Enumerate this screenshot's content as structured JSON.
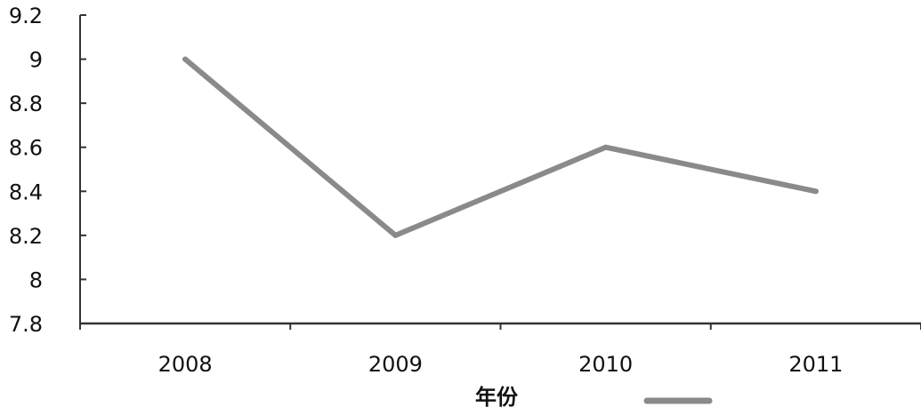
{
  "chart_data": {
    "type": "line",
    "title": "",
    "xlabel": "年份",
    "ylabel": "",
    "categories": [
      "2008",
      "2009",
      "2010",
      "2011"
    ],
    "series": [
      {
        "name": "",
        "values": [
          9.0,
          8.2,
          8.6,
          8.4
        ],
        "color": "#8a8a8a"
      }
    ],
    "ylim": [
      7.8,
      9.2
    ],
    "y_ticks": [
      7.8,
      8.0,
      8.2,
      8.4,
      8.6,
      8.8,
      9.0,
      9.2
    ],
    "y_tick_labels": [
      "7.8",
      "8",
      "8.2",
      "8.4",
      "8.6",
      "8.8",
      "9",
      "9.2"
    ],
    "grid": false,
    "legend": "bottom, right of axis title",
    "axis_color": "#333333"
  }
}
